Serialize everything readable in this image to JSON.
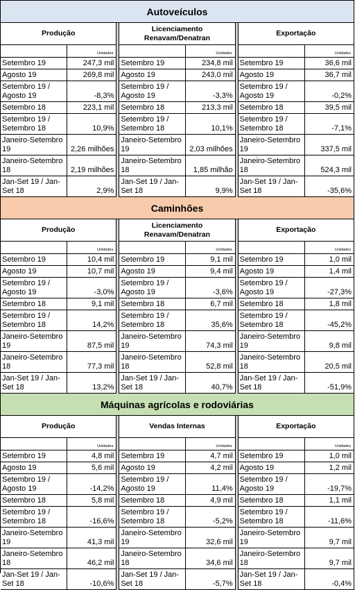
{
  "colors": {
    "autoveiculos_header": "#dbe5f1",
    "caminhoes_header": "#f8cbad",
    "maquinas_header": "#c6e0b4",
    "separator": "#d0d0d0"
  },
  "sections": [
    {
      "title": "Autoveículos",
      "columns": [
        {
          "title": "Produção",
          "unit": "Unidades",
          "rows": [
            {
              "label": "Setembro 19",
              "value": "247,3 mil"
            },
            {
              "label": "Agosto 19",
              "value": "269,8 mil"
            },
            {
              "label": "Setembro 19 / Agosto 19",
              "value": "-8,3%"
            },
            {
              "label": "Setembro 18",
              "value": "223,1 mil"
            },
            {
              "label": "Setembro 19 / Setembro 18",
              "value": "10,9%"
            },
            {
              "label": "Janeiro-Setembro 19",
              "value": "2,26 milhões"
            },
            {
              "label": "Janeiro-Setembro 18",
              "value": "2,19 milhões"
            },
            {
              "label": "Jan-Set 19 / Jan-Set 18",
              "value": "2,9%"
            }
          ]
        },
        {
          "title": "Licenciamento Renavam/Denatran",
          "unit": "Unidades",
          "rows": [
            {
              "label": "Setembro 19",
              "value": "234,8 mil"
            },
            {
              "label": "Agosto 19",
              "value": "243,0 mil"
            },
            {
              "label": "Setembro 19 / Agosto 19",
              "value": "-3,3%"
            },
            {
              "label": "Setembro 18",
              "value": "213,3 mil"
            },
            {
              "label": "Setembro 19 / Setembro 18",
              "value": "10,1%"
            },
            {
              "label": "Janeiro-Setembro 19",
              "value": "2,03 milhões"
            },
            {
              "label": "Janeiro-Setembro 18",
              "value": "1,85 milhão"
            },
            {
              "label": "Jan-Set 19 / Jan-Set 18",
              "value": "9,9%"
            }
          ]
        },
        {
          "title": "Exportação",
          "unit": "Unidades",
          "rows": [
            {
              "label": "Setembro 19",
              "value": "36,6 mil"
            },
            {
              "label": "Agosto 19",
              "value": "36,7 mil"
            },
            {
              "label": "Setembro 19 / Agosto 19",
              "value": "-0,2%"
            },
            {
              "label": "Setembro 18",
              "value": "39,5 mil"
            },
            {
              "label": "Setembro 19 / Setembro 18",
              "value": "-7,1%"
            },
            {
              "label": "Janeiro-Setembro 19",
              "value": "337,5 mil"
            },
            {
              "label": "Janeiro-Setembro 18",
              "value": "524,3 mil"
            },
            {
              "label": "Jan-Set 19 / Jan-Set 18",
              "value": "-35,6%"
            }
          ]
        }
      ]
    },
    {
      "title": "Caminhões",
      "columns": [
        {
          "title": "Produção",
          "unit": "Unidades",
          "rows": [
            {
              "label": "Setembro 19",
              "value": "10,4 mil"
            },
            {
              "label": "Agosto 19",
              "value": "10,7 mil"
            },
            {
              "label": "Setembro 19 / Agosto 19",
              "value": "-3,0%"
            },
            {
              "label": "Setembro 18",
              "value": "9,1 mil"
            },
            {
              "label": "Setembro 19 / Setembro 18",
              "value": "14,2%"
            },
            {
              "label": "Janeiro-Setembro 19",
              "value": "87,5 mil"
            },
            {
              "label": "Janeiro-Setembro 18",
              "value": "77,3 mil"
            },
            {
              "label": "Jan-Set 19 / Jan-Set 18",
              "value": "13,2%"
            }
          ]
        },
        {
          "title": "Licenciamento Renavam/Denatran",
          "unit": "Unidades",
          "rows": [
            {
              "label": "Setembro 19",
              "value": "9,1 mil"
            },
            {
              "label": "Agosto 19",
              "value": "9,4 mil"
            },
            {
              "label": "Setembro 19 / Agosto 19",
              "value": "-3,6%"
            },
            {
              "label": "Setembro 18",
              "value": "6,7 mil"
            },
            {
              "label": "Setembro 19 / Setembro 18",
              "value": "35,6%"
            },
            {
              "label": "Janeiro-Setembro 19",
              "value": "74,3 mil"
            },
            {
              "label": "Janeiro-Setembro 18",
              "value": "52,8 mil"
            },
            {
              "label": "Jan-Set 19 / Jan-Set 18",
              "value": "40,7%"
            }
          ]
        },
        {
          "title": "Exportação",
          "unit": "Unidades",
          "rows": [
            {
              "label": "Setembro 19",
              "value": "1,0 mil"
            },
            {
              "label": "Agosto 19",
              "value": "1,4 mil"
            },
            {
              "label": "Setembro 19 / Agosto 19",
              "value": "-27,3%"
            },
            {
              "label": "Setembro 18",
              "value": "1,8 mil"
            },
            {
              "label": "Setembro 19 / Setembro 18",
              "value": "-45,2%"
            },
            {
              "label": "Janeiro-Setembro 19",
              "value": "9,8 mil"
            },
            {
              "label": "Janeiro-Setembro 18",
              "value": "20,5 mil"
            },
            {
              "label": "Jan-Set 19 / Jan-Set 18",
              "value": "-51,9%"
            }
          ]
        }
      ]
    },
    {
      "title": "Máquinas agrícolas e rodoviárias",
      "columns": [
        {
          "title": "Produção",
          "unit": "Unidades",
          "rows": [
            {
              "label": "Setembro 19",
              "value": "4,8 mil"
            },
            {
              "label": "Agosto 19",
              "value": "5,6 mil"
            },
            {
              "label": "Setembro 19 / Agosto 19",
              "value": "-14,2%"
            },
            {
              "label": "Setembro 18",
              "value": "5,8 mil"
            },
            {
              "label": "Setembro 19 / Setembro 18",
              "value": "-16,6%"
            },
            {
              "label": "Janeiro-Setembro 19",
              "value": "41,3 mil"
            },
            {
              "label": "Janeiro-Setembro 18",
              "value": "46,2 mil"
            },
            {
              "label": "Jan-Set 19 / Jan-Set 18",
              "value": "-10,6%"
            }
          ]
        },
        {
          "title": "Vendas Internas",
          "unit": "Unidades",
          "rows": [
            {
              "label": "Setembro 19",
              "value": "4,7 mil"
            },
            {
              "label": "Agosto 19",
              "value": "4,2 mil"
            },
            {
              "label": "Setembro 19 / Agosto 19",
              "value": "11,4%"
            },
            {
              "label": "Setembro 18",
              "value": "4,9 mil"
            },
            {
              "label": "Setembro 19 / Setembro 18",
              "value": "-5,2%"
            },
            {
              "label": "Janeiro-Setembro 19",
              "value": "32,6 mil"
            },
            {
              "label": "Janeiro-Setembro 18",
              "value": "34,6 mil"
            },
            {
              "label": "Jan-Set 19 / Jan-Set 18",
              "value": "-5,7%"
            }
          ]
        },
        {
          "title": "Exportação",
          "unit": "Unidades",
          "rows": [
            {
              "label": "Setembro 19",
              "value": "1,0 mil"
            },
            {
              "label": "Agosto 19",
              "value": "1,2 mil"
            },
            {
              "label": "Setembro 19 / Agosto 19",
              "value": "-19,7%"
            },
            {
              "label": "Setembro 18",
              "value": "1,1 mil"
            },
            {
              "label": "Setembro 19 / Setembro 18",
              "value": "-11,6%"
            },
            {
              "label": "Janeiro-Setembro 19",
              "value": "9,7 mil"
            },
            {
              "label": "Janeiro-Setembro 18",
              "value": "9,7 mil"
            },
            {
              "label": "Jan-Set 19 / Jan-Set 18",
              "value": "-0,4%"
            }
          ]
        }
      ]
    }
  ]
}
